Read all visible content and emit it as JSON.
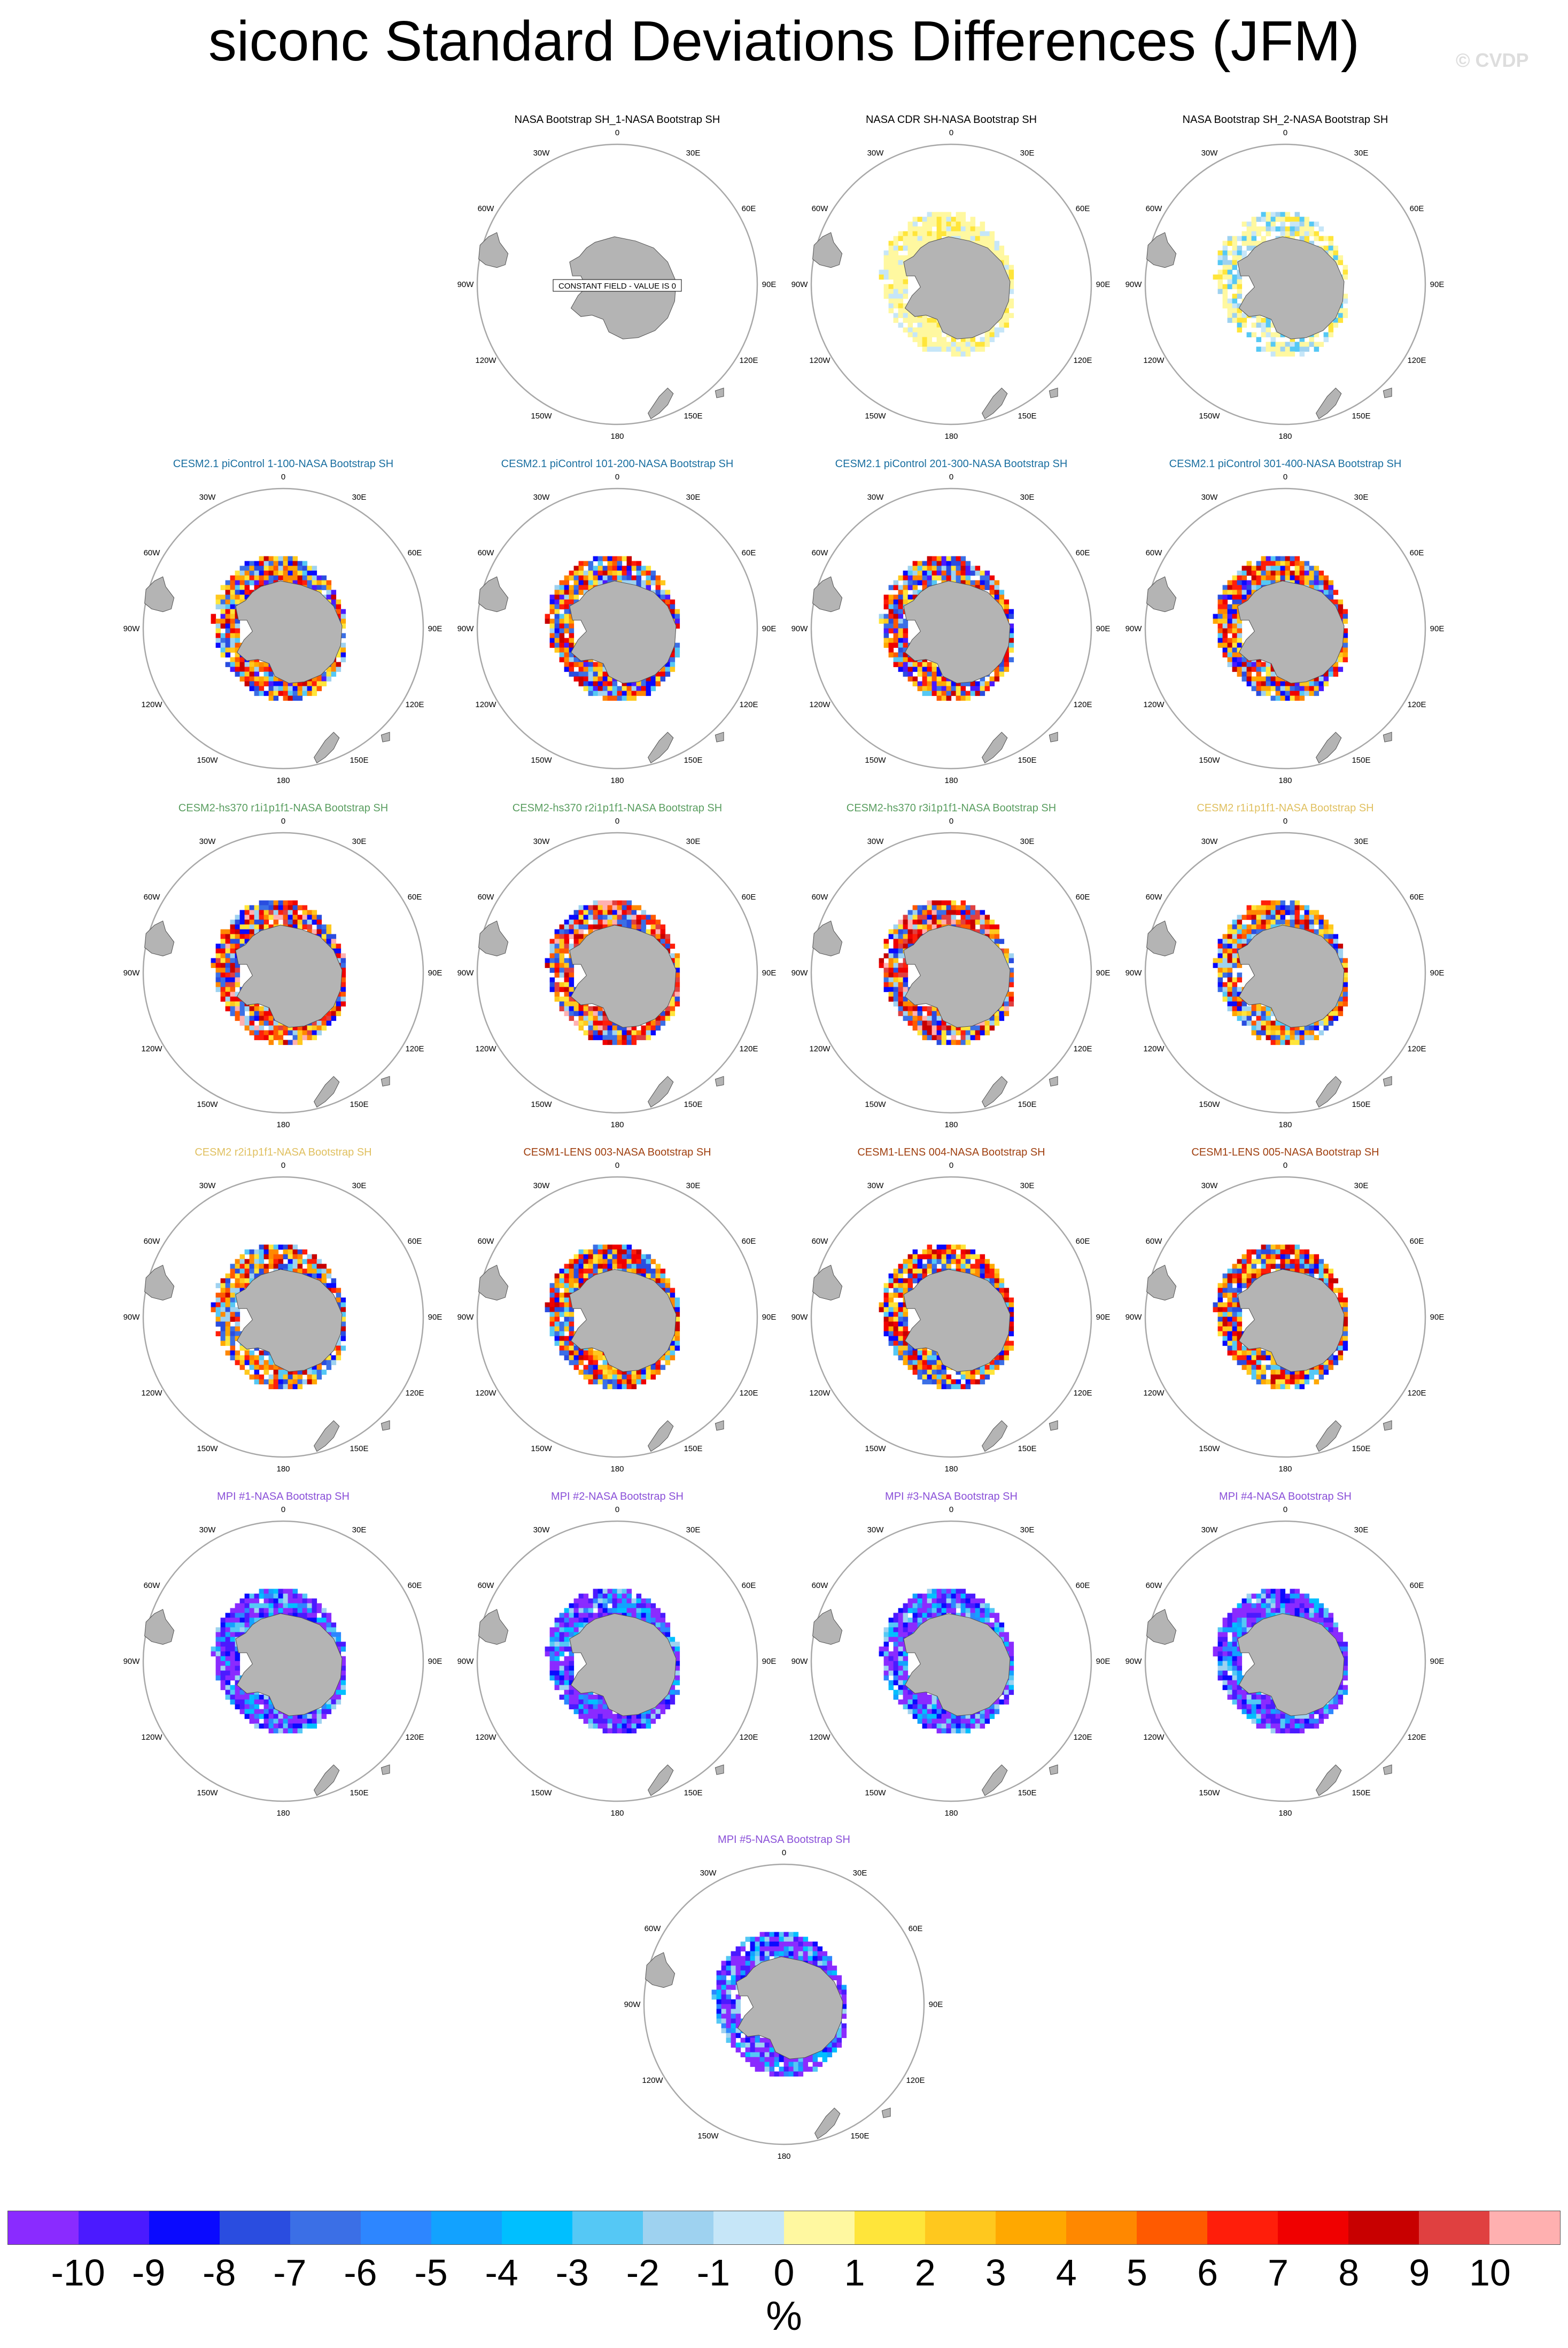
{
  "title": "siconc Standard Deviations Differences (JFM)",
  "watermark": "© CVDP",
  "units": "%",
  "colors": {
    "land": "#b4b4b4",
    "land_edge": "#505050",
    "circle": "#a8a8a8",
    "palette": [
      "#8a2bff",
      "#4b1aff",
      "#0a0aff",
      "#2a4de0",
      "#3b6fe6",
      "#2d86ff",
      "#12a2ff",
      "#00bfff",
      "#55c8f5",
      "#9ed2f0",
      "#c6e6f8",
      "#fff8a0",
      "#ffe53a",
      "#ffc81e",
      "#ffa800",
      "#ff8800",
      "#ff5a00",
      "#ff1e0a",
      "#f00000",
      "#c80000",
      "#e04040",
      "#ffb0b0"
    ]
  },
  "chart_data": {
    "type": "heatmap",
    "title": "siconc Standard Deviations Differences (JFM)",
    "colorbar": {
      "ticks": [
        "-10",
        "-9",
        "-8",
        "-7",
        "-6",
        "-5",
        "-4",
        "-3",
        "-2",
        "-1",
        "0",
        "1",
        "2",
        "3",
        "4",
        "5",
        "6",
        "7",
        "8",
        "9",
        "10"
      ],
      "units": "%",
      "boxes": 22
    },
    "lon_labels": [
      "0",
      "30E",
      "60E",
      "90E",
      "120E",
      "150E",
      "180",
      "150W",
      "120W",
      "90W",
      "60W",
      "30W"
    ],
    "panels": [
      {
        "title": "NASA Bootstrap SH_1-NASA Bootstrap SH",
        "title_color": "#000000",
        "style": "constant",
        "note": "CONSTANT FIELD - VALUE IS 0"
      },
      {
        "title": "NASA CDR SH-NASA Bootstrap SH",
        "title_color": "#000000",
        "style": "obs_yellow"
      },
      {
        "title": "NASA Bootstrap SH_2-NASA Bootstrap SH",
        "title_color": "#000000",
        "style": "obs_mixed"
      },
      {
        "title": "CESM2.1 piControl 1-100-NASA Bootstrap SH",
        "title_color": "#1a6fa0",
        "style": "cesm_pi"
      },
      {
        "title": "CESM2.1 piControl 101-200-NASA Bootstrap SH",
        "title_color": "#1a6fa0",
        "style": "cesm_pi"
      },
      {
        "title": "CESM2.1 piControl 201-300-NASA Bootstrap SH",
        "title_color": "#1a6fa0",
        "style": "cesm_pi"
      },
      {
        "title": "CESM2.1 piControl 301-400-NASA Bootstrap SH",
        "title_color": "#1a6fa0",
        "style": "cesm_pi"
      },
      {
        "title": "CESM2-hs370 r1i1p1f1-NASA Bootstrap SH",
        "title_color": "#5a9e60",
        "style": "hs370"
      },
      {
        "title": "CESM2-hs370 r2i1p1f1-NASA Bootstrap SH",
        "title_color": "#5a9e60",
        "style": "hs370"
      },
      {
        "title": "CESM2-hs370 r3i1p1f1-NASA Bootstrap SH",
        "title_color": "#5a9e60",
        "style": "hs370"
      },
      {
        "title": "CESM2 r1i1p1f1-NASA Bootstrap SH",
        "title_color": "#e0c060",
        "style": "cesm2"
      },
      {
        "title": "CESM2 r2i1p1f1-NASA Bootstrap SH",
        "title_color": "#e0c060",
        "style": "cesm2"
      },
      {
        "title": "CESM1-LENS 003-NASA Bootstrap SH",
        "title_color": "#a04010",
        "style": "lens"
      },
      {
        "title": "CESM1-LENS 004-NASA Bootstrap SH",
        "title_color": "#a04010",
        "style": "lens"
      },
      {
        "title": "CESM1-LENS 005-NASA Bootstrap SH",
        "title_color": "#a04010",
        "style": "lens"
      },
      {
        "title": "MPI #1-NASA Bootstrap SH",
        "title_color": "#8a50d8",
        "style": "mpi"
      },
      {
        "title": "MPI #2-NASA Bootstrap SH",
        "title_color": "#8a50d8",
        "style": "mpi"
      },
      {
        "title": "MPI #3-NASA Bootstrap SH",
        "title_color": "#8a50d8",
        "style": "mpi"
      },
      {
        "title": "MPI #4-NASA Bootstrap SH",
        "title_color": "#8a50d8",
        "style": "mpi"
      },
      {
        "title": "MPI #5-NASA Bootstrap SH",
        "title_color": "#8a50d8",
        "style": "mpi"
      }
    ]
  }
}
